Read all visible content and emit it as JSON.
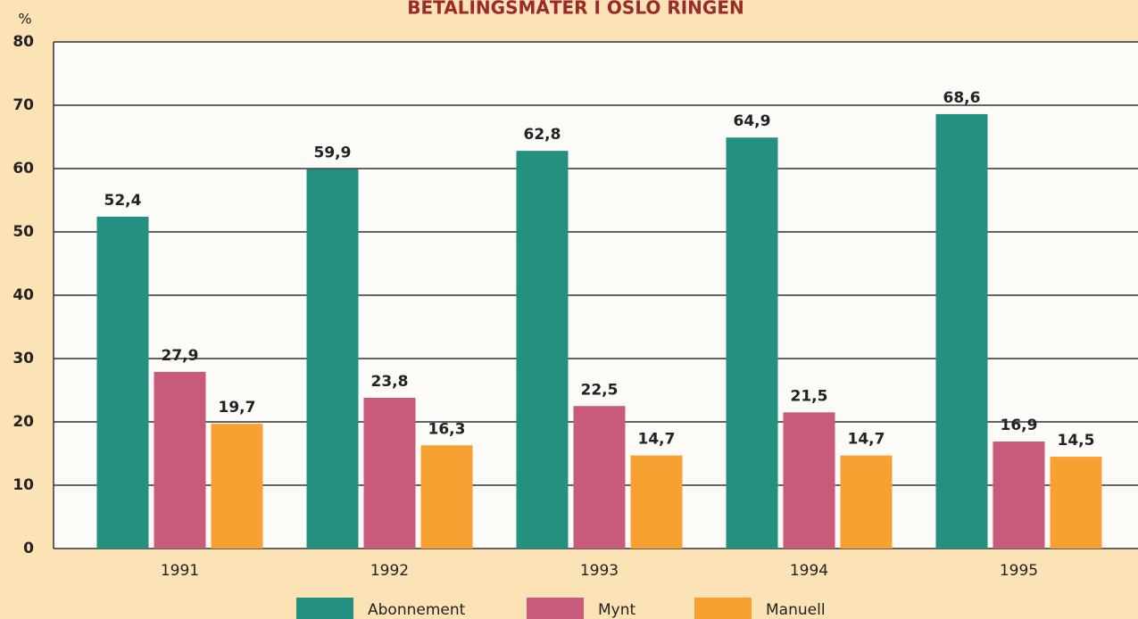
{
  "chart_data": {
    "type": "bar",
    "title": "BETALINGSMÅTER I OSLO RINGEN",
    "y_label": "%",
    "categories": [
      "1991",
      "1992",
      "1993",
      "1994",
      "1995"
    ],
    "series": [
      {
        "name": "Abonnement",
        "color": "#24907f",
        "values": [
          52.4,
          59.9,
          62.8,
          64.9,
          68.6
        ],
        "value_labels": [
          "52,4",
          "59,9",
          "62,8",
          "64,9",
          "68,6"
        ]
      },
      {
        "name": "Mynt",
        "color": "#c85b7a",
        "values": [
          27.9,
          23.8,
          22.5,
          21.5,
          16.9
        ],
        "value_labels": [
          "27,9",
          "23,8",
          "22,5",
          "21,5",
          "16,9"
        ]
      },
      {
        "name": "Manuell",
        "color": "#f8a133",
        "values": [
          19.7,
          16.3,
          14.7,
          14.7,
          14.5
        ],
        "value_labels": [
          "19,7",
          "16,3",
          "14,7",
          "14,7",
          "14,5"
        ]
      }
    ],
    "ylim": [
      0,
      80
    ],
    "yticks": [
      0,
      10,
      20,
      30,
      40,
      50,
      60,
      70,
      80
    ],
    "grid": true
  }
}
